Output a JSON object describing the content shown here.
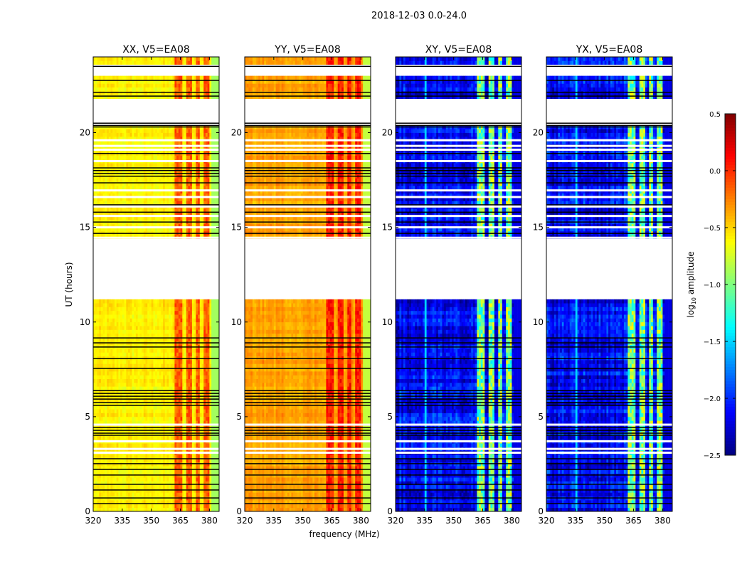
{
  "chart_data": {
    "type": "heatmap",
    "suptitle": "2018-12-03 0.0-24.0",
    "xlabel": "frequency (MHz)",
    "ylabel": "UT (hours)",
    "xlim": [
      320,
      385
    ],
    "ylim": [
      0,
      24
    ],
    "xticks": [
      "320",
      "335",
      "350",
      "365",
      "380"
    ],
    "xtick_values": [
      320,
      335,
      350,
      365,
      380
    ],
    "yticks": [
      "0",
      "5",
      "10",
      "15",
      "20"
    ],
    "ytick_values": [
      0,
      5,
      10,
      15,
      20
    ],
    "colormap": "jet",
    "colorbar": {
      "label": "log10 amplitude",
      "label_main": "log",
      "label_sub": "10",
      "label_rest": " amplitude",
      "vmin": -2.5,
      "vmax": 0.5,
      "ticks": [
        "0.5",
        "0.0",
        "−0.5",
        "−1.0",
        "−1.5",
        "−2.0",
        "−2.5"
      ],
      "tick_values": [
        0.5,
        0.0,
        -0.5,
        -1.0,
        -1.5,
        -2.0,
        -2.5
      ]
    },
    "panels": [
      {
        "title": "XX, V5=EA08",
        "base_level": -0.6,
        "band_level": -0.15,
        "edge_level": -0.9,
        "noise": 0.12
      },
      {
        "title": "YY, V5=EA08",
        "base_level": -0.35,
        "band_level": 0.05,
        "edge_level": -0.8,
        "noise": 0.12
      },
      {
        "title": "XY, V5=EA08",
        "base_level": -2.15,
        "band_level": -1.0,
        "edge_level": -2.2,
        "noise": 0.35
      },
      {
        "title": "YX, V5=EA08",
        "base_level": -2.15,
        "band_level": -1.0,
        "edge_level": -2.2,
        "noise": 0.35
      }
    ],
    "band_range_mhz": [
      362,
      380
    ],
    "band_gaps_mhz": [
      [
        366.3,
        367.2
      ],
      [
        371.3,
        372.2
      ],
      [
        375.5,
        376.6
      ]
    ],
    "edge_from_mhz": 381,
    "blank_intervals_hours": [
      [
        11.0,
        14.2
      ],
      [
        20.35,
        23.5
      ]
    ],
    "data_rows_in_blank_hours": [
      [
        21.95,
        22.0
      ],
      [
        22.3,
        22.36
      ],
      [
        22.5,
        22.56
      ],
      [
        22.74,
        22.8
      ]
    ],
    "flagged_black_rows_hours": [
      23.5,
      22.76,
      22.13,
      21.93,
      20.5,
      20.38,
      20.3,
      18.9,
      18.14,
      18.0,
      17.85,
      17.7,
      17.35,
      16.19,
      15.8,
      15.28,
      14.68,
      9.16,
      8.9,
      8.68,
      8.07,
      7.55,
      6.38,
      6.23,
      6.08,
      5.93,
      5.75,
      5.6,
      4.43,
      4.28,
      4.13,
      4.02,
      2.78,
      2.52,
      2.22,
      1.92,
      1.43,
      1.13,
      0.71,
      0.41
    ],
    "flagged_white_rows_hours": [
      19.6,
      19.3,
      19.1,
      18.5,
      16.95,
      16.6,
      16.1,
      15.6,
      15.0,
      14.45,
      4.58,
      3.7,
      3.3,
      3.1
    ]
  }
}
